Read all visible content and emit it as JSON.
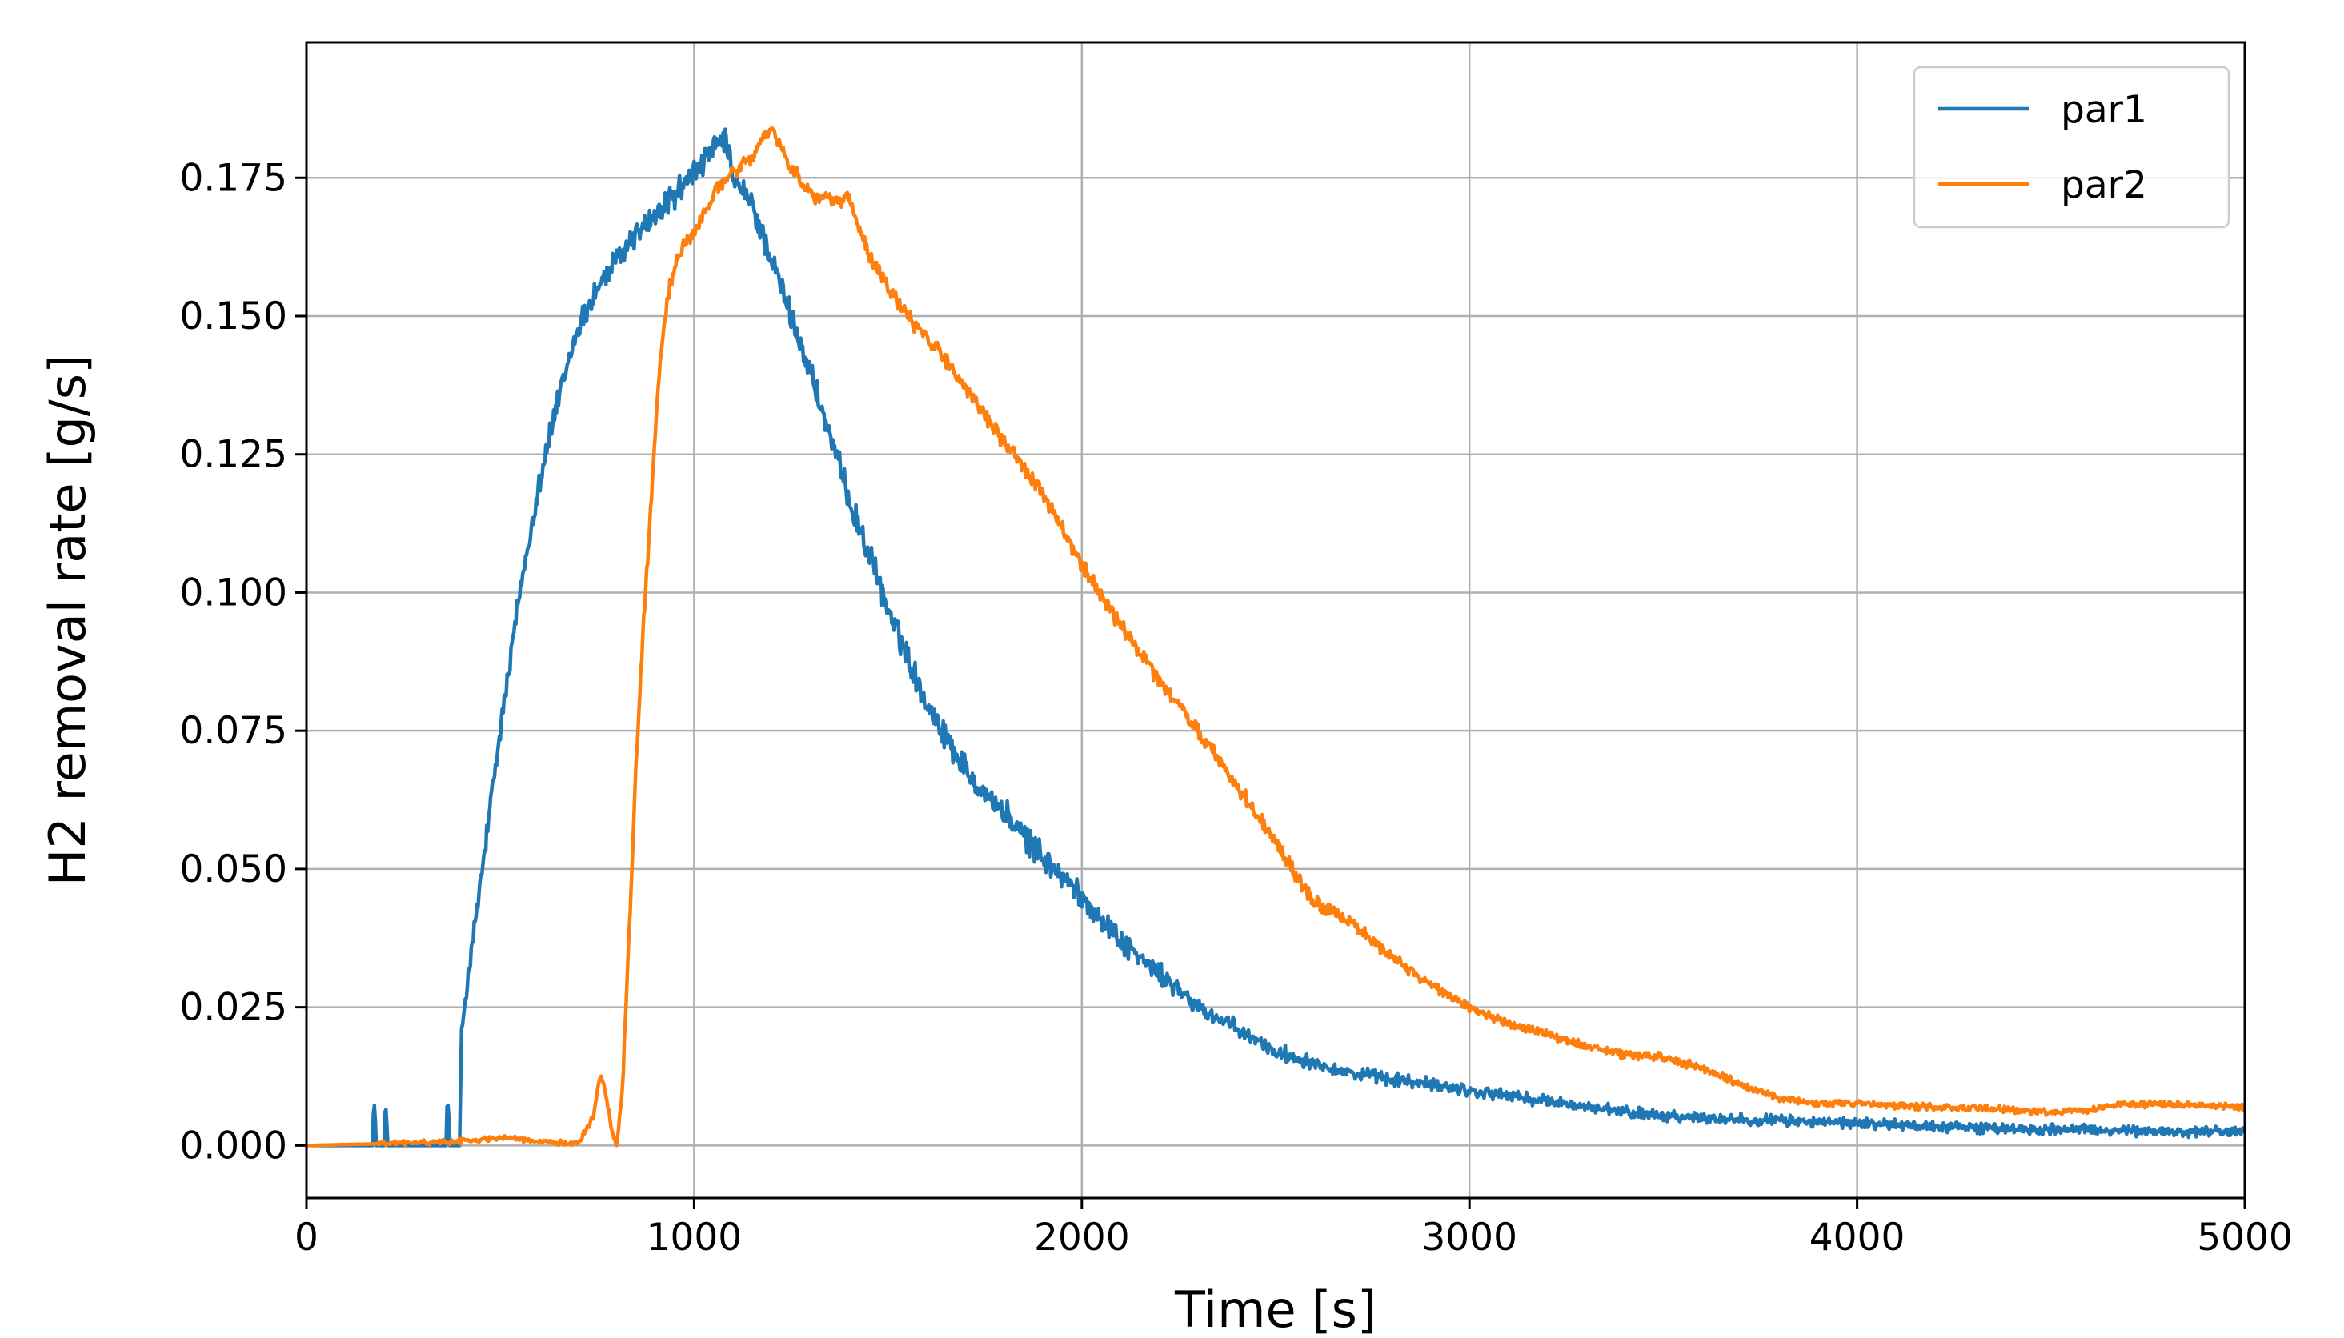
{
  "chart_data": {
    "type": "line",
    "title": "",
    "xlabel": "Time [s]",
    "ylabel": "H2 removal rate [g/s]",
    "xlim": [
      0,
      5000
    ],
    "ylim": [
      -0.0095,
      0.1995
    ],
    "xticks": [
      0,
      1000,
      2000,
      3000,
      4000,
      5000
    ],
    "xtick_labels": [
      "0",
      "1000",
      "2000",
      "3000",
      "4000",
      "5000"
    ],
    "yticks": [
      0.0,
      0.025,
      0.05,
      0.075,
      0.1,
      0.125,
      0.15,
      0.175
    ],
    "ytick_labels": [
      "0.000",
      "0.025",
      "0.050",
      "0.075",
      "0.100",
      "0.125",
      "0.150",
      "0.175"
    ],
    "grid": true,
    "legend_position": "top-right",
    "series": [
      {
        "name": "par1",
        "color": "#1f77b4",
        "noise": 0.003,
        "x": [
          0,
          170,
          172,
          176,
          180,
          200,
          202,
          206,
          210,
          360,
          362,
          366,
          370,
          395,
          400,
          405,
          420,
          450,
          500,
          550,
          600,
          650,
          700,
          750,
          800,
          850,
          900,
          950,
          1000,
          1050,
          1080,
          1100,
          1150,
          1200,
          1250,
          1300,
          1350,
          1400,
          1500,
          1600,
          1700,
          1800,
          1900,
          2000,
          2100,
          2200,
          2300,
          2400,
          2500,
          2600,
          2700,
          2800,
          2900,
          3000,
          3200,
          3400,
          3600,
          3800,
          4000,
          4200,
          4400,
          4600,
          4800,
          5000
        ],
        "y": [
          0.0,
          0.0,
          0.007,
          0.007,
          0.0,
          0.0,
          0.006,
          0.006,
          0.0,
          0.0,
          0.007,
          0.007,
          0.0,
          0.0,
          0.02,
          0.024,
          0.032,
          0.048,
          0.075,
          0.1,
          0.12,
          0.135,
          0.148,
          0.155,
          0.16,
          0.165,
          0.168,
          0.172,
          0.176,
          0.18,
          0.182,
          0.175,
          0.17,
          0.16,
          0.15,
          0.14,
          0.128,
          0.117,
          0.097,
          0.08,
          0.068,
          0.06,
          0.052,
          0.045,
          0.037,
          0.031,
          0.025,
          0.021,
          0.017,
          0.015,
          0.013,
          0.012,
          0.011,
          0.01,
          0.008,
          0.006,
          0.005,
          0.0045,
          0.004,
          0.0035,
          0.003,
          0.0028,
          0.0025,
          0.0025
        ]
      },
      {
        "name": "par2",
        "color": "#ff7f0e",
        "noise": 0.0016,
        "x": [
          0,
          300,
          450,
          500,
          530,
          560,
          600,
          700,
          740,
          755,
          765,
          775,
          790,
          800,
          815,
          830,
          850,
          870,
          890,
          910,
          930,
          950,
          970,
          1000,
          1030,
          1060,
          1100,
          1150,
          1180,
          1200,
          1250,
          1300,
          1350,
          1400,
          1450,
          1500,
          1550,
          1600,
          1650,
          1700,
          1800,
          1900,
          2000,
          2100,
          2200,
          2300,
          2400,
          2500,
          2550,
          2600,
          2700,
          2800,
          2900,
          3000,
          3100,
          3200,
          3300,
          3400,
          3500,
          3600,
          3700,
          3800,
          3900,
          4000,
          4200,
          4400,
          4500,
          4600,
          4700,
          4800,
          5000
        ],
        "y": [
          0.0,
          0.0005,
          0.001,
          0.0015,
          0.0015,
          0.001,
          0.0005,
          0.0005,
          0.005,
          0.012,
          0.012,
          0.008,
          0.002,
          0.0,
          0.01,
          0.035,
          0.068,
          0.095,
          0.118,
          0.14,
          0.153,
          0.159,
          0.162,
          0.165,
          0.169,
          0.173,
          0.176,
          0.179,
          0.182,
          0.184,
          0.177,
          0.172,
          0.171,
          0.171,
          0.161,
          0.155,
          0.15,
          0.146,
          0.142,
          0.137,
          0.127,
          0.118,
          0.105,
          0.094,
          0.084,
          0.075,
          0.065,
          0.055,
          0.049,
          0.044,
          0.04,
          0.034,
          0.029,
          0.025,
          0.022,
          0.02,
          0.018,
          0.0165,
          0.016,
          0.014,
          0.011,
          0.0085,
          0.0075,
          0.0075,
          0.007,
          0.0065,
          0.006,
          0.0065,
          0.0075,
          0.0075,
          0.007
        ]
      }
    ]
  }
}
